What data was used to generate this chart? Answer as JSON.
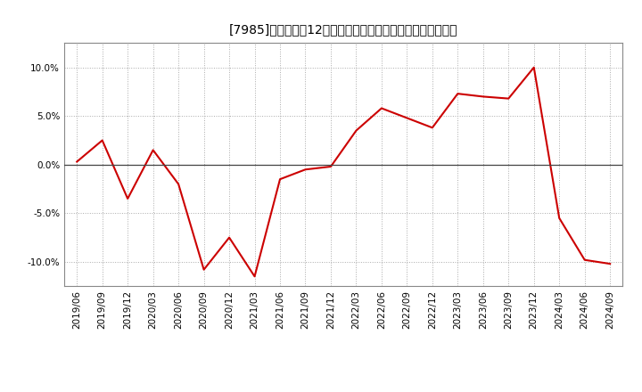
{
  "title": "[7985]　売上高の12か月移動合計の対前年同期増減率の推移",
  "x_labels": [
    "2019/06",
    "2019/09",
    "2019/12",
    "2020/03",
    "2020/06",
    "2020/09",
    "2020/12",
    "2021/03",
    "2021/06",
    "2021/09",
    "2021/12",
    "2022/03",
    "2022/06",
    "2022/09",
    "2022/12",
    "2023/03",
    "2023/06",
    "2023/09",
    "2023/12",
    "2024/03",
    "2024/06",
    "2024/09"
  ],
  "y_values": [
    0.3,
    2.5,
    -3.5,
    1.5,
    -2.0,
    -10.8,
    -7.5,
    -11.5,
    -1.5,
    -0.5,
    -0.2,
    3.5,
    5.8,
    4.8,
    3.8,
    7.3,
    7.0,
    6.8,
    10.0,
    -5.5,
    -9.8,
    -10.2
  ],
  "line_color": "#cc0000",
  "line_width": 1.5,
  "background_color": "#ffffff",
  "plot_bg_color": "#ffffff",
  "grid_color": "#aaaaaa",
  "zero_line_color": "#444444",
  "ylim": [
    -12.5,
    12.5
  ],
  "yticks": [
    -10.0,
    -5.0,
    0.0,
    5.0,
    10.0
  ],
  "title_fontsize": 11,
  "tick_fontsize": 7.5
}
